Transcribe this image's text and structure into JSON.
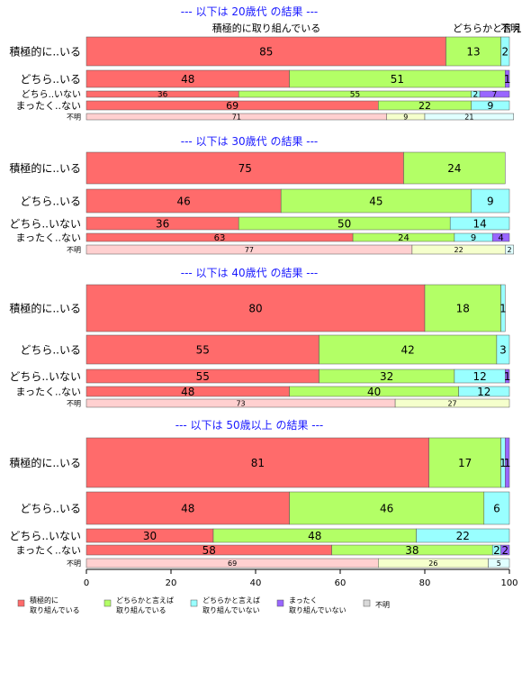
{
  "chart_data": {
    "type": "bar",
    "orientation": "horizontal",
    "stacked": true,
    "xlim": [
      0,
      100
    ],
    "ticks": [
      0,
      20,
      40,
      60,
      80,
      100
    ],
    "top_labels": [
      "積極的に取り組んでいる",
      "どちらかと言えば",
      "不明"
    ],
    "legend": [
      {
        "lines": [
          "積極的に",
          "取り組んでいる"
        ],
        "color": "#ff6b6b"
      },
      {
        "lines": [
          "どちらかと言えば",
          "取り組んでいる"
        ],
        "color": "#b3ff66"
      },
      {
        "lines": [
          "どちらかと言えば",
          "取り組んでいない"
        ],
        "color": "#99ffff"
      },
      {
        "lines": [
          "まったく",
          "取り組んでいない"
        ],
        "color": "#9966ff"
      },
      {
        "lines": [
          "不明"
        ],
        "color": "#d9d9d9"
      }
    ],
    "colors": [
      "#ff6b6b",
      "#b3ff66",
      "#99ffff",
      "#9966ff",
      "#d9d9d9"
    ],
    "unknown_colors": [
      "#ffd0d0",
      "#f5ffcc",
      "#e0ffff",
      "#e6ccff",
      "#f2f2f2"
    ],
    "categories": [
      "積極的に..いる",
      "どちら..いる",
      "どちら..いない",
      "まったく..ない",
      "不明"
    ],
    "panels": [
      {
        "title": "--- 以下は 20歳代 の結果 ---",
        "rows": [
          {
            "label": "積極的に..いる",
            "values": [
              85,
              13,
              2,
              0,
              0
            ]
          },
          {
            "label": "どちら..いる",
            "values": [
              48,
              51,
              0,
              1,
              0
            ]
          },
          {
            "label": "どちら..いない",
            "values": [
              36,
              55,
              2,
              7,
              0
            ]
          },
          {
            "label": "まったく..ない",
            "values": [
              69,
              22,
              9,
              0,
              0
            ]
          },
          {
            "label": "不明",
            "values": [
              71,
              9,
              21,
              0,
              0
            ]
          }
        ]
      },
      {
        "title": "--- 以下は 30歳代 の結果 ---",
        "rows": [
          {
            "label": "積極的に..いる",
            "values": [
              75,
              24,
              0,
              0,
              0
            ]
          },
          {
            "label": "どちら..いる",
            "values": [
              46,
              45,
              9,
              0,
              0
            ]
          },
          {
            "label": "どちら..いない",
            "values": [
              36,
              50,
              14,
              0,
              0
            ]
          },
          {
            "label": "まったく..ない",
            "values": [
              63,
              24,
              9,
              4,
              0
            ]
          },
          {
            "label": "不明",
            "values": [
              77,
              22,
              2,
              0,
              0
            ]
          }
        ]
      },
      {
        "title": "--- 以下は 40歳代 の結果 ---",
        "rows": [
          {
            "label": "積極的に..いる",
            "values": [
              80,
              18,
              1,
              0,
              0
            ]
          },
          {
            "label": "どちら..いる",
            "values": [
              55,
              42,
              3,
              0,
              0
            ]
          },
          {
            "label": "どちら..いない",
            "values": [
              55,
              32,
              12,
              1,
              0
            ]
          },
          {
            "label": "まったく..ない",
            "values": [
              48,
              40,
              12,
              0,
              0
            ]
          },
          {
            "label": "不明",
            "values": [
              73,
              27,
              0,
              0,
              0
            ]
          }
        ]
      },
      {
        "title": "--- 以下は 50歳以上 の結果 ---",
        "rows": [
          {
            "label": "積極的に..いる",
            "values": [
              81,
              17,
              1,
              1,
              0
            ]
          },
          {
            "label": "どちら..いる",
            "values": [
              48,
              46,
              6,
              0,
              0
            ]
          },
          {
            "label": "どちら..いない",
            "values": [
              30,
              48,
              22,
              0,
              0
            ]
          },
          {
            "label": "まったく..ない",
            "values": [
              58,
              38,
              2,
              2,
              0
            ]
          },
          {
            "label": "不明",
            "values": [
              69,
              26,
              5,
              0,
              0
            ]
          }
        ]
      }
    ]
  }
}
